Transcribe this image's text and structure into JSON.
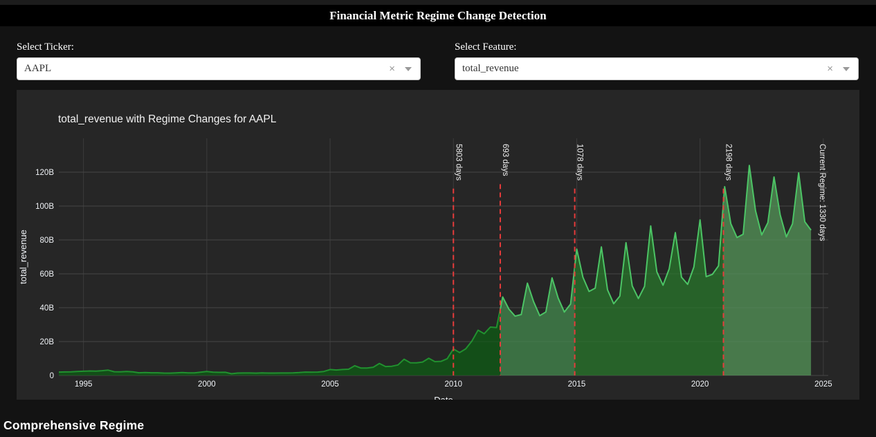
{
  "header": {
    "title": "Financial Metric Regime Change Detection"
  },
  "controls": {
    "ticker": {
      "label": "Select Ticker:",
      "value": "AAPL",
      "clear_icon": "×"
    },
    "feature": {
      "label": "Select Feature:",
      "value": "total_revenue",
      "clear_icon": "×"
    }
  },
  "chart_data": {
    "type": "area",
    "title": "total_revenue with Regime Changes for AAPL",
    "xlabel": "Date",
    "ylabel": "total_revenue",
    "x_range": [
      1994.0,
      2025.2
    ],
    "y_range": [
      0,
      140
    ],
    "grid": true,
    "x_ticks": [
      {
        "value": 1995,
        "label": "1995"
      },
      {
        "value": 2000,
        "label": "2000"
      },
      {
        "value": 2005,
        "label": "2005"
      },
      {
        "value": 2010,
        "label": "2010"
      },
      {
        "value": 2015,
        "label": "2015"
      },
      {
        "value": 2020,
        "label": "2020"
      },
      {
        "value": 2025,
        "label": "2025"
      }
    ],
    "y_ticks": [
      {
        "value": 0,
        "label": "0"
      },
      {
        "value": 20,
        "label": "20B"
      },
      {
        "value": 40,
        "label": "40B"
      },
      {
        "value": 60,
        "label": "60B"
      },
      {
        "value": 80,
        "label": "80B"
      },
      {
        "value": 100,
        "label": "100B"
      },
      {
        "value": 120,
        "label": "120B"
      }
    ],
    "colors": {
      "grid": "#3c3c3c",
      "grid_overlay": "#ffffff",
      "tick": "#f0f3f7",
      "annotation": "#f0f0f0",
      "regime_line": "#e63b3b"
    },
    "series_name": "total_revenue",
    "points": [
      [
        1994.0,
        2.0
      ],
      [
        1994.25,
        2.08
      ],
      [
        1994.5,
        2.15
      ],
      [
        1994.75,
        2.35
      ],
      [
        1995.0,
        2.49
      ],
      [
        1995.25,
        2.65
      ],
      [
        1995.5,
        2.57
      ],
      [
        1995.75,
        2.8
      ],
      [
        1996.0,
        3.15
      ],
      [
        1996.25,
        2.19
      ],
      [
        1996.5,
        2.18
      ],
      [
        1996.75,
        2.32
      ],
      [
        1997.0,
        2.13
      ],
      [
        1997.25,
        1.6
      ],
      [
        1997.5,
        1.74
      ],
      [
        1997.75,
        1.61
      ],
      [
        1998.0,
        1.58
      ],
      [
        1998.25,
        1.41
      ],
      [
        1998.5,
        1.4
      ],
      [
        1998.75,
        1.56
      ],
      [
        1999.0,
        1.71
      ],
      [
        1999.25,
        1.53
      ],
      [
        1999.5,
        1.56
      ],
      [
        1999.75,
        1.9
      ],
      [
        2000.0,
        2.34
      ],
      [
        2000.25,
        1.95
      ],
      [
        2000.5,
        1.83
      ],
      [
        2000.75,
        1.87
      ],
      [
        2001.0,
        1.01
      ],
      [
        2001.25,
        1.43
      ],
      [
        2001.5,
        1.48
      ],
      [
        2001.75,
        1.45
      ],
      [
        2002.0,
        1.38
      ],
      [
        2002.25,
        1.5
      ],
      [
        2002.5,
        1.43
      ],
      [
        2002.75,
        1.44
      ],
      [
        2003.0,
        1.47
      ],
      [
        2003.25,
        1.48
      ],
      [
        2003.5,
        1.55
      ],
      [
        2003.75,
        1.72
      ],
      [
        2004.0,
        2.01
      ],
      [
        2004.25,
        1.91
      ],
      [
        2004.5,
        2.01
      ],
      [
        2004.75,
        2.35
      ],
      [
        2005.0,
        3.49
      ],
      [
        2005.25,
        3.24
      ],
      [
        2005.5,
        3.52
      ],
      [
        2005.75,
        3.68
      ],
      [
        2006.0,
        5.75
      ],
      [
        2006.25,
        4.36
      ],
      [
        2006.5,
        4.37
      ],
      [
        2006.75,
        4.84
      ],
      [
        2007.0,
        7.12
      ],
      [
        2007.25,
        5.26
      ],
      [
        2007.5,
        5.41
      ],
      [
        2007.75,
        6.22
      ],
      [
        2008.0,
        9.61
      ],
      [
        2008.25,
        7.51
      ],
      [
        2008.5,
        7.46
      ],
      [
        2008.75,
        7.9
      ],
      [
        2009.0,
        10.17
      ],
      [
        2009.25,
        8.16
      ],
      [
        2009.5,
        8.34
      ],
      [
        2009.75,
        9.87
      ],
      [
        2010.0,
        15.68
      ],
      [
        2010.25,
        13.5
      ],
      [
        2010.5,
        15.7
      ],
      [
        2010.75,
        20.34
      ],
      [
        2011.0,
        26.74
      ],
      [
        2011.25,
        24.67
      ],
      [
        2011.5,
        28.57
      ],
      [
        2011.75,
        28.27
      ],
      [
        2012.0,
        46.33
      ],
      [
        2012.25,
        39.19
      ],
      [
        2012.5,
        35.02
      ],
      [
        2012.75,
        35.97
      ],
      [
        2013.0,
        54.51
      ],
      [
        2013.25,
        43.6
      ],
      [
        2013.5,
        35.32
      ],
      [
        2013.75,
        37.47
      ],
      [
        2014.0,
        57.59
      ],
      [
        2014.25,
        45.65
      ],
      [
        2014.5,
        37.43
      ],
      [
        2014.75,
        42.12
      ],
      [
        2015.0,
        74.6
      ],
      [
        2015.25,
        58.01
      ],
      [
        2015.5,
        49.61
      ],
      [
        2015.75,
        51.5
      ],
      [
        2016.0,
        75.87
      ],
      [
        2016.25,
        50.56
      ],
      [
        2016.5,
        42.36
      ],
      [
        2016.75,
        46.85
      ],
      [
        2017.0,
        78.35
      ],
      [
        2017.25,
        52.9
      ],
      [
        2017.5,
        45.41
      ],
      [
        2017.75,
        52.58
      ],
      [
        2018.0,
        88.29
      ],
      [
        2018.25,
        61.14
      ],
      [
        2018.5,
        53.27
      ],
      [
        2018.75,
        62.9
      ],
      [
        2019.0,
        84.31
      ],
      [
        2019.25,
        58.02
      ],
      [
        2019.5,
        53.81
      ],
      [
        2019.75,
        64.04
      ],
      [
        2020.0,
        91.82
      ],
      [
        2020.25,
        58.31
      ],
      [
        2020.5,
        59.69
      ],
      [
        2020.75,
        64.7
      ],
      [
        2021.0,
        111.44
      ],
      [
        2021.25,
        89.58
      ],
      [
        2021.5,
        81.43
      ],
      [
        2021.75,
        83.36
      ],
      [
        2022.0,
        123.95
      ],
      [
        2022.25,
        97.28
      ],
      [
        2022.5,
        82.96
      ],
      [
        2022.75,
        90.15
      ],
      [
        2023.0,
        117.15
      ],
      [
        2023.25,
        94.84
      ],
      [
        2023.5,
        81.8
      ],
      [
        2023.75,
        89.5
      ],
      [
        2024.0,
        119.58
      ],
      [
        2024.25,
        90.75
      ],
      [
        2024.5,
        85.78
      ]
    ],
    "regimes": [
      {
        "start": 1994.0,
        "end": 2010.0,
        "label": "5803 days",
        "fill": "#134e18",
        "line": "#21912f"
      },
      {
        "start": 2010.0,
        "end": 2011.9,
        "label": "693 days",
        "fill": "#134e18",
        "line": "#21912f"
      },
      {
        "start": 2011.9,
        "end": 2014.92,
        "label": "1078 days",
        "fill": "#3b7043",
        "line": "#4cc465"
      },
      {
        "start": 2014.92,
        "end": 2020.95,
        "label": "2198 days",
        "fill": "#276229",
        "line": "#4cc465"
      },
      {
        "start": 2020.95,
        "end": 2024.5,
        "label": "Current Regime: 1330 days",
        "fill": "#48794b",
        "line": "#4cc465"
      }
    ],
    "current_regime": {
      "x": 2024.75,
      "label": "Current Regime: 1330 days"
    }
  },
  "footer": {
    "title": "Comprehensive Regime"
  }
}
